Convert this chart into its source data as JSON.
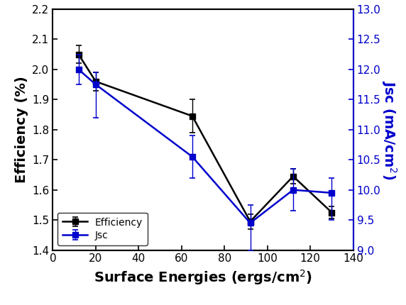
{
  "x": [
    12,
    20,
    65,
    92,
    112,
    130
  ],
  "efficiency": [
    2.05,
    1.96,
    1.845,
    1.495,
    1.645,
    1.525
  ],
  "efficiency_err": [
    0.03,
    0.03,
    0.055,
    0.025,
    0.025,
    0.02
  ],
  "jsc": [
    12.0,
    11.75,
    10.55,
    9.45,
    10.0,
    9.95
  ],
  "jsc_err_upper": [
    0.25,
    0.2,
    0.35,
    0.3,
    0.35,
    0.25
  ],
  "jsc_err_lower": [
    0.25,
    0.55,
    0.35,
    0.45,
    0.35,
    0.45
  ],
  "xlabel": "Surface Energies (ergs/cm$^2$)",
  "ylabel_left": "Efficiency (%)",
  "ylabel_right": "Jsc (mA/cm$^2$)",
  "xlim": [
    0,
    140
  ],
  "ylim_left": [
    1.4,
    2.2
  ],
  "ylim_right": [
    9.0,
    13.0
  ],
  "xticks": [
    0,
    20,
    40,
    60,
    80,
    100,
    120,
    140
  ],
  "yticks_left": [
    1.4,
    1.5,
    1.6,
    1.7,
    1.8,
    1.9,
    2.0,
    2.1,
    2.2
  ],
  "yticks_right": [
    9.0,
    9.5,
    10.0,
    10.5,
    11.0,
    11.5,
    12.0,
    12.5,
    13.0
  ],
  "color_efficiency": "#000000",
  "color_jsc": "#0000cc",
  "legend_labels": [
    "Efficiency",
    "Jsc"
  ],
  "background_color": "#ffffff",
  "linewidth": 1.8,
  "markersize": 6,
  "capsize": 3
}
